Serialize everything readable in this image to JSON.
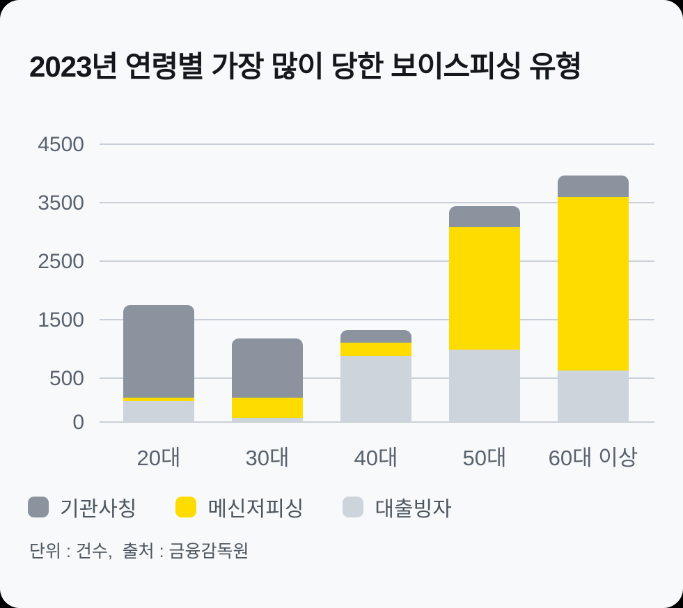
{
  "title": "2023년 연령별 가장 많이 당한 보이스피싱 유형",
  "footer": "단위 : 건수,  출처 : 금융감독원",
  "colors": {
    "card_background": "#f7f9fa",
    "page_background": "#000000",
    "gridline": "#c9d0d7",
    "title_text": "#14171b",
    "axis_text": "#59626d",
    "legend_text": "#4d565f",
    "institution_gray": "#8a939e",
    "messenger_yellow": "#ffdc00",
    "loan_lightgray": "#ced4db"
  },
  "legend": [
    {
      "label": "기관사칭",
      "color": "#8a939e"
    },
    {
      "label": "메신저피싱",
      "color": "#ffdc00"
    },
    {
      "label": "대출빙자",
      "color": "#ced4db"
    }
  ],
  "chart_data": {
    "type": "bar",
    "stacked": true,
    "title": "2023년 연령별 가장 많이 당한 보이스피싱 유형",
    "unit": "건수",
    "source": "금융감독원",
    "categories": [
      "20대",
      "30대",
      "40대",
      "50대",
      "60대 이상"
    ],
    "series": [
      {
        "name": "기관사칭",
        "color": "#8a939e",
        "values": [
          1470,
          895,
          215,
          355,
          370
        ]
      },
      {
        "name": "메신저피싱",
        "color": "#ffdc00",
        "values": [
          40,
          230,
          225,
          2095,
          2965
        ]
      },
      {
        "name": "대출빙자",
        "color": "#ced4db",
        "values": [
          240,
          50,
          880,
          990,
          630
        ]
      }
    ],
    "totals": [
      1750,
      1175,
      1320,
      3440,
      3965
    ],
    "y_ticks": [
      4500,
      3500,
      2500,
      1500,
      500,
      0
    ],
    "ylim": [
      0,
      4500
    ],
    "grid": true,
    "legend_position": "bottom"
  }
}
